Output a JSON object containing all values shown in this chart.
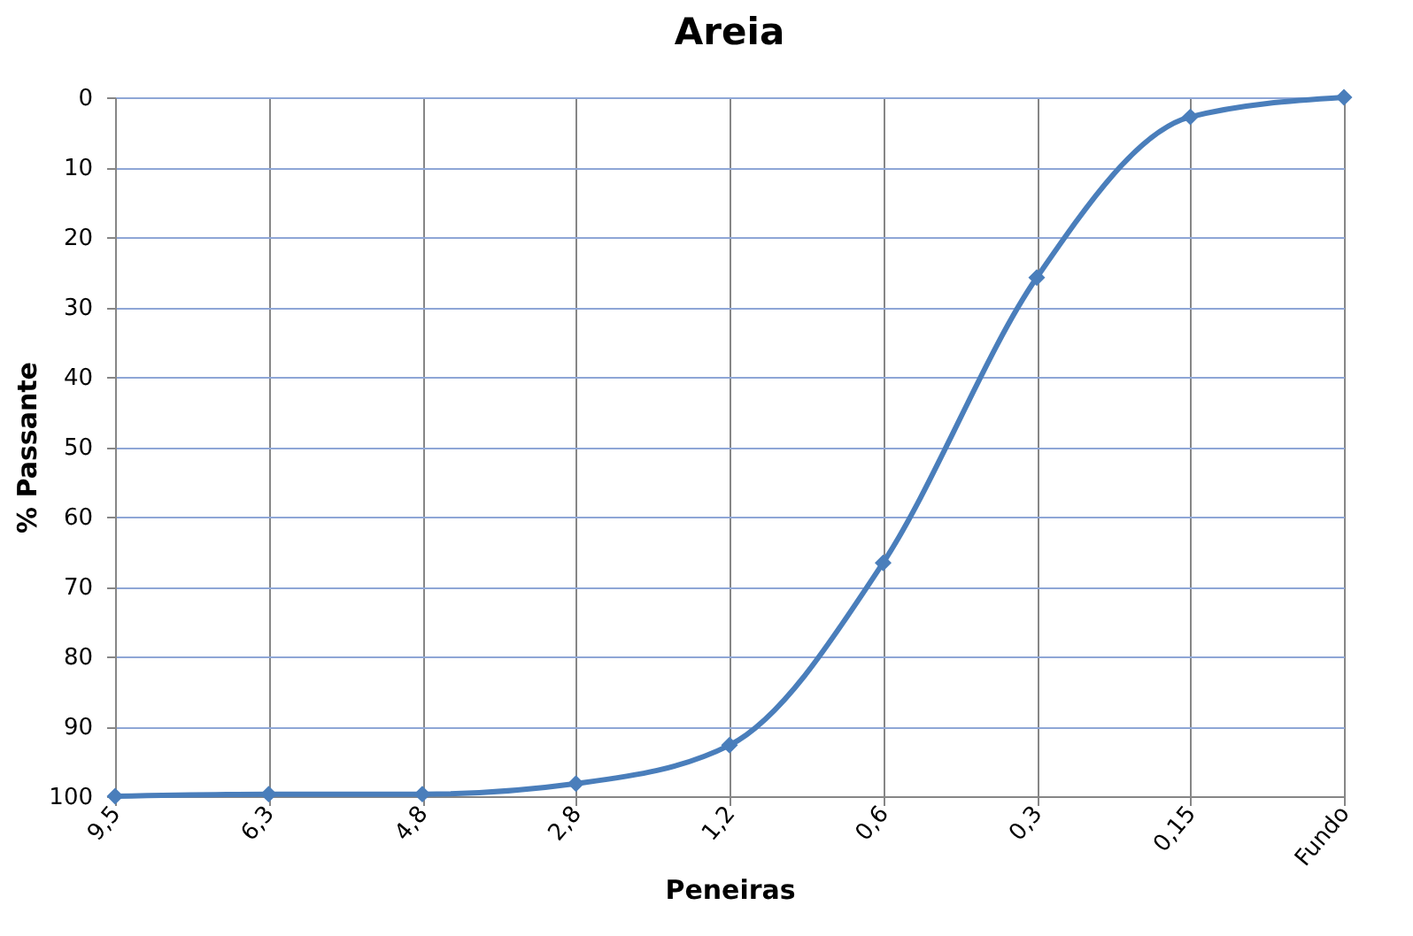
{
  "chart_data": {
    "type": "line",
    "title": "Areia",
    "xlabel": "Peneiras",
    "ylabel": "% Passante",
    "categories": [
      "9,5",
      "6,3",
      "4,8",
      "2,8",
      "1,2",
      "0,6",
      "0,3",
      "0,15",
      "Fundo"
    ],
    "series": [
      {
        "color": "#4a7ebb",
        "values": [
          100,
          99.7,
          99.7,
          98.2,
          92.7,
          66.6,
          25.8,
          2.8,
          0
        ]
      }
    ],
    "ylim": [
      100,
      0
    ],
    "yticks": [
      0,
      10,
      20,
      30,
      40,
      50,
      60,
      70,
      80,
      90,
      100
    ],
    "grid": true,
    "marker": "diamond",
    "line_style": "solid"
  }
}
